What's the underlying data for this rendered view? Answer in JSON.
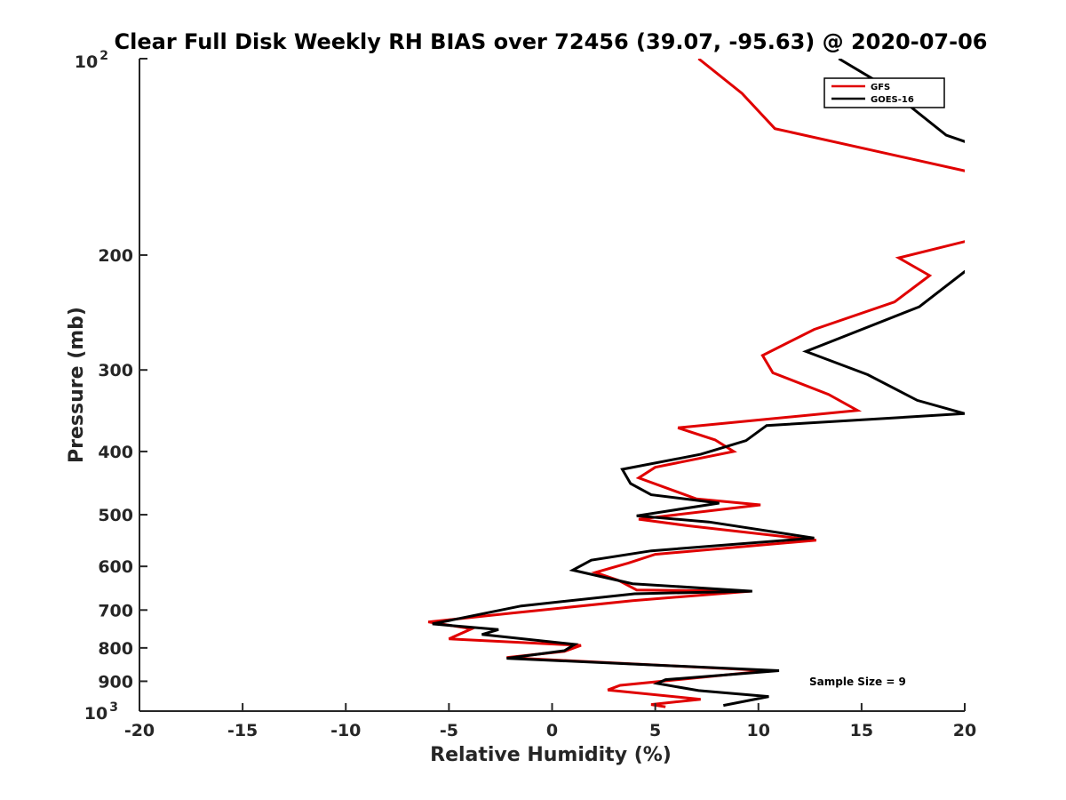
{
  "chart_data": {
    "type": "line",
    "title": "Clear Full Disk Weekly RH BIAS over 72456 (39.07, -95.63) @ 2020-07-06",
    "xlabel": "Relative Humidity (%)",
    "ylabel": "Pressure (mb)",
    "xlim": [
      -20,
      20
    ],
    "ylim": [
      100,
      1000
    ],
    "yscale": "log",
    "yreversed": true,
    "x_ticks": [
      -20,
      -15,
      -10,
      -5,
      0,
      5,
      10,
      15,
      20
    ],
    "x_tick_labels": [
      "-20",
      "-15",
      "-10",
      "-5",
      "0",
      "5",
      "10",
      "15",
      "20"
    ],
    "y_ticks": [
      200,
      300,
      400,
      500,
      600,
      700,
      800,
      900
    ],
    "y_tick_labels": [
      "200",
      "300",
      "400",
      "500",
      "600",
      "700",
      "800",
      "900"
    ],
    "y_top_label": {
      "base": "10",
      "exp": "2"
    },
    "y_bottom_label": {
      "base": "10",
      "exp": "3"
    },
    "legend_position": "top-right",
    "annotation": "Sample Size = 9",
    "series": [
      {
        "name": "GFS",
        "color": "#e00000",
        "points": [
          [
            7.1,
            100
          ],
          [
            9.2,
            113
          ],
          [
            10.8,
            128
          ],
          [
            20.6,
            150
          ],
          [
            20.2,
            190
          ],
          [
            16.8,
            202
          ],
          [
            18.3,
            215
          ],
          [
            16.6,
            236
          ],
          [
            12.7,
            260
          ],
          [
            10.2,
            285
          ],
          [
            10.7,
            303
          ],
          [
            13.4,
            327
          ],
          [
            14.8,
            346
          ],
          [
            6.1,
            368
          ],
          [
            7.9,
            384
          ],
          [
            8.8,
            400
          ],
          [
            5.0,
            423
          ],
          [
            4.2,
            439
          ],
          [
            7.0,
            473
          ],
          [
            10.1,
            483
          ],
          [
            4.2,
            508
          ],
          [
            6.6,
            520
          ],
          [
            12.8,
            547
          ],
          [
            5.0,
            575
          ],
          [
            3.7,
            593
          ],
          [
            2.1,
            613
          ],
          [
            3.2,
            630
          ],
          [
            4.1,
            652
          ],
          [
            9.6,
            655
          ],
          [
            3.9,
            677
          ],
          [
            -2.0,
            708
          ],
          [
            -6.0,
            730
          ],
          [
            -3.9,
            748
          ],
          [
            -5.0,
            775
          ],
          [
            1.4,
            793
          ],
          [
            0.6,
            810
          ],
          [
            -2.2,
            828
          ],
          [
            10.5,
            867
          ],
          [
            3.3,
            913
          ],
          [
            2.7,
            928
          ],
          [
            7.2,
            959
          ],
          [
            4.8,
            977
          ],
          [
            5.5,
            985
          ]
        ]
      },
      {
        "name": "GOES-16",
        "color": "#000000",
        "points": [
          [
            13.9,
            100
          ],
          [
            16.1,
            110
          ],
          [
            19.1,
            131
          ],
          [
            20.6,
            136
          ],
          [
            21.5,
            150
          ],
          [
            20.6,
            205
          ],
          [
            17.8,
            240
          ],
          [
            12.3,
            281
          ],
          [
            15.3,
            305
          ],
          [
            17.7,
            334
          ],
          [
            20.0,
            350
          ],
          [
            10.4,
            365
          ],
          [
            9.4,
            385
          ],
          [
            7.2,
            404
          ],
          [
            3.4,
            426
          ],
          [
            3.8,
            448
          ],
          [
            4.8,
            466
          ],
          [
            8.1,
            480
          ],
          [
            4.1,
            502
          ],
          [
            7.6,
            513
          ],
          [
            12.7,
            543
          ],
          [
            4.8,
            568
          ],
          [
            1.9,
            587
          ],
          [
            1.0,
            608
          ],
          [
            3.9,
            638
          ],
          [
            9.7,
            655
          ],
          [
            4.0,
            661
          ],
          [
            -1.5,
            690
          ],
          [
            -5.8,
            735
          ],
          [
            -2.6,
            750
          ],
          [
            -3.4,
            763
          ],
          [
            1.1,
            790
          ],
          [
            0.6,
            808
          ],
          [
            -2.2,
            830
          ],
          [
            11.0,
            867
          ],
          [
            5.5,
            895
          ],
          [
            5.1,
            907
          ],
          [
            7.1,
            930
          ],
          [
            10.5,
            950
          ],
          [
            8.3,
            980
          ]
        ]
      }
    ]
  }
}
